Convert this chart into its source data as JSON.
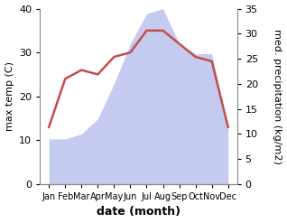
{
  "months": [
    "Jan",
    "Feb",
    "Mar",
    "Apr",
    "May",
    "Jun",
    "Jul",
    "Aug",
    "Sep",
    "Oct",
    "Nov",
    "Dec"
  ],
  "temperature": [
    13,
    24,
    26,
    25,
    29,
    30,
    35,
    35,
    32,
    29,
    28,
    13
  ],
  "precipitation": [
    9,
    9,
    10,
    13,
    20,
    28,
    34,
    35,
    28,
    26,
    26,
    11
  ],
  "temp_color": "#c0504d",
  "precip_fill_color": "#c5caf0",
  "temp_ylim": [
    0,
    40
  ],
  "precip_ylim": [
    0,
    35
  ],
  "temp_yticks": [
    0,
    10,
    20,
    30,
    40
  ],
  "precip_yticks": [
    0,
    5,
    10,
    15,
    20,
    25,
    30,
    35
  ],
  "xlabel": "date (month)",
  "ylabel_left": "max temp (C)",
  "ylabel_right": "med. precipitation (kg/m2)",
  "figsize": [
    3.18,
    2.47
  ],
  "dpi": 100
}
